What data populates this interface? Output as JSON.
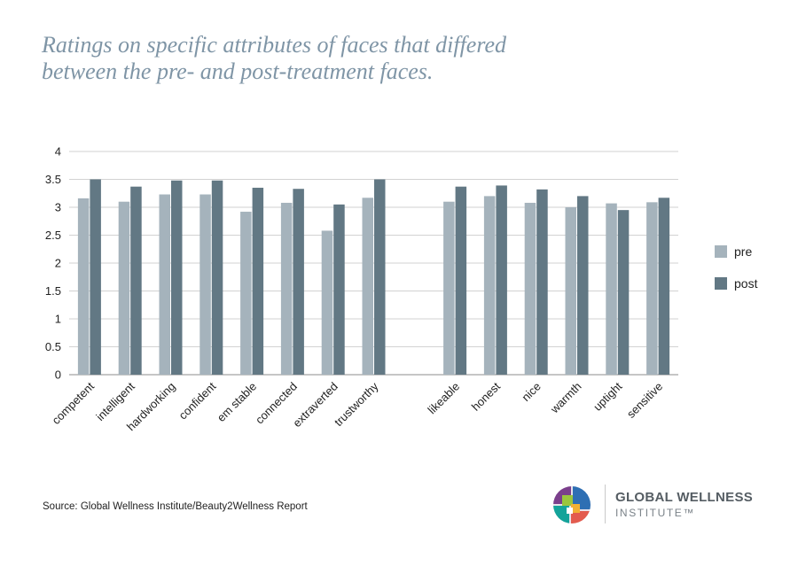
{
  "title_lines": [
    "Ratings on specific attributes of faces that differed",
    "between the pre- and post-treatment faces."
  ],
  "source": "Source: Global Wellness Institute/Beauty2Wellness Report",
  "logo": {
    "line1": "GLOBAL WELLNESS",
    "line2": "INSTITUTE™"
  },
  "chart_data": {
    "type": "bar",
    "categories": [
      "competent",
      "intelligent",
      "hardworking",
      "confident",
      "em stable",
      "connected",
      "extraverted",
      "trustworthy",
      "",
      "likeable",
      "honest",
      "nice",
      "warmth",
      "uptight",
      "sensitive"
    ],
    "series": [
      {
        "name": "pre",
        "color": "#a5b3bc",
        "values": [
          3.16,
          3.1,
          3.23,
          3.23,
          2.92,
          3.08,
          2.58,
          3.17,
          null,
          3.1,
          3.2,
          3.08,
          3.0,
          3.07,
          3.09
        ]
      },
      {
        "name": "post",
        "color": "#627884",
        "values": [
          3.5,
          3.37,
          3.48,
          3.48,
          3.35,
          3.33,
          3.05,
          3.5,
          null,
          3.37,
          3.39,
          3.32,
          3.2,
          2.95,
          3.17
        ]
      }
    ],
    "ylim": [
      0,
      4
    ],
    "yticks": [
      "0",
      "0.5",
      "1",
      "1.5",
      "2",
      "2.5",
      "3",
      "3.5",
      "4"
    ],
    "grid": true,
    "legend": "right"
  }
}
